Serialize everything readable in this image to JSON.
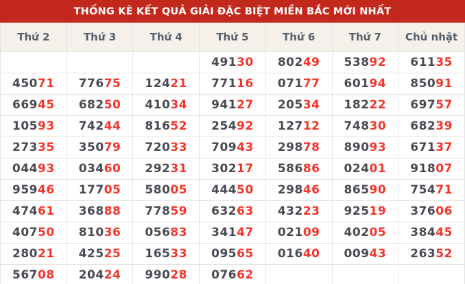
{
  "chart_data": {
    "type": "table",
    "title": "THỐNG KÊ KẾT QUẢ GIẢI ĐẶC BIỆT MIỀN BẮC MỚI NHẤT",
    "columns": [
      "Thứ 2",
      "Thứ 3",
      "Thứ 4",
      "Thứ 5",
      "Thứ 6",
      "Thứ 7",
      "Chủ nhật"
    ],
    "red_suffix_length": 2,
    "highlight_note": "last two digits of every result rendered in red",
    "rows": [
      [
        "",
        "",
        "",
        "49130",
        "80249",
        "53892",
        "61135"
      ],
      [
        "45071",
        "77675",
        "12421",
        "77116",
        "07177",
        "60194",
        "85091"
      ],
      [
        "66945",
        "68250",
        "41034",
        "94127",
        "20534",
        "18222",
        "69757"
      ],
      [
        "10593",
        "74244",
        "81652",
        "25492",
        "12712",
        "74830",
        "68239"
      ],
      [
        "27335",
        "35079",
        "72033",
        "70943",
        "29878",
        "89093",
        "67137"
      ],
      [
        "04493",
        "03460",
        "29231",
        "30217",
        "58686",
        "02401",
        "91807"
      ],
      [
        "95946",
        "17705",
        "58005",
        "44450",
        "29846",
        "86590",
        "75471"
      ],
      [
        "47461",
        "36888",
        "77859",
        "63263",
        "43223",
        "92519",
        "37606"
      ],
      [
        "40750",
        "81036",
        "05683",
        "34147",
        "02109",
        "40205",
        "38445"
      ],
      [
        "28021",
        "42525",
        "16533",
        "09565",
        "01640",
        "00943",
        "26352"
      ],
      [
        "56708",
        "20424",
        "99028",
        "07662",
        "",
        "",
        ""
      ]
    ]
  },
  "colors": {
    "title_bg": "#c2291c",
    "title_text": "#ffffff",
    "header_bg": "#f5f0e9",
    "header_text": "#57606a",
    "digit_dark": "#494a52",
    "digit_red": "#f4352a",
    "border": "#e3e3e3",
    "cell_bg": "#ffffff"
  }
}
